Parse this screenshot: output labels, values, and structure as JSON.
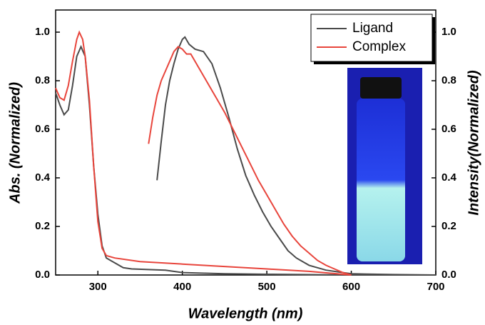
{
  "chart_data": {
    "type": "line",
    "xlabel": "Wavelength (nm)",
    "ylabel": "Abs. (Normalized)",
    "y2label": "Intensity(Normalized)",
    "xlim": [
      250,
      700
    ],
    "xticks": [
      300,
      400,
      500,
      600,
      700
    ],
    "ylim": [
      0,
      1
    ],
    "yticks": [
      {
        "value": 0,
        "label": "0.0"
      },
      0.2,
      0.4,
      0.6,
      0.8,
      {
        "value": 1,
        "label": "1.0"
      }
    ],
    "y2lim": [
      0,
      1
    ],
    "y2ticks": [
      {
        "value": 0,
        "label": "0.0"
      },
      0.2,
      0.4,
      0.6,
      0.8,
      {
        "value": 1,
        "label": "1.0"
      }
    ],
    "legend": "upper-right",
    "series": [
      {
        "name": "Ligand",
        "color": "#4a4a4a",
        "x": [
          250,
          255,
          260,
          265,
          270,
          275,
          280,
          285,
          290,
          295,
          300,
          305,
          310,
          320,
          330,
          340,
          380,
          400,
          450,
          500,
          600,
          700
        ],
        "values": [
          0.75,
          0.7,
          0.66,
          0.68,
          0.78,
          0.9,
          0.94,
          0.9,
          0.7,
          0.45,
          0.25,
          0.12,
          0.07,
          0.05,
          0.03,
          0.025,
          0.02,
          0.01,
          0.005,
          0.003,
          0,
          0
        ]
      },
      {
        "name": "Complex",
        "color": "#e8453c",
        "x": [
          250,
          255,
          260,
          265,
          270,
          275,
          278,
          282,
          285,
          290,
          295,
          300,
          305,
          310,
          320,
          350,
          400,
          450,
          500,
          550,
          600
        ],
        "values": [
          0.77,
          0.73,
          0.72,
          0.78,
          0.88,
          0.97,
          1.0,
          0.97,
          0.9,
          0.72,
          0.45,
          0.22,
          0.11,
          0.08,
          0.07,
          0.055,
          0.045,
          0.035,
          0.025,
          0.015,
          0
        ]
      },
      {
        "color": "#4a4a4a",
        "axis": "y2",
        "x": [
          370,
          375,
          380,
          385,
          390,
          395,
          400,
          403,
          408,
          415,
          425,
          435,
          445,
          455,
          465,
          475,
          485,
          495,
          505,
          515,
          525,
          535,
          550,
          570,
          600,
          650,
          700
        ],
        "values": [
          0.39,
          0.55,
          0.7,
          0.8,
          0.87,
          0.93,
          0.97,
          0.98,
          0.95,
          0.93,
          0.92,
          0.87,
          0.77,
          0.65,
          0.52,
          0.41,
          0.33,
          0.26,
          0.2,
          0.15,
          0.1,
          0.07,
          0.04,
          0.02,
          0.005,
          0.002,
          0
        ]
      },
      {
        "color": "#e8453c",
        "axis": "y2",
        "x": [
          360,
          365,
          370,
          375,
          380,
          385,
          390,
          395,
          400,
          405,
          410,
          420,
          430,
          440,
          450,
          460,
          470,
          480,
          490,
          500,
          510,
          520,
          530,
          540,
          550,
          560,
          570,
          580,
          590,
          600
        ],
        "values": [
          0.54,
          0.65,
          0.74,
          0.8,
          0.84,
          0.88,
          0.92,
          0.94,
          0.93,
          0.91,
          0.91,
          0.85,
          0.79,
          0.73,
          0.67,
          0.6,
          0.53,
          0.46,
          0.39,
          0.33,
          0.27,
          0.21,
          0.16,
          0.12,
          0.09,
          0.06,
          0.04,
          0.025,
          0.01,
          0
        ]
      }
    ]
  }
}
